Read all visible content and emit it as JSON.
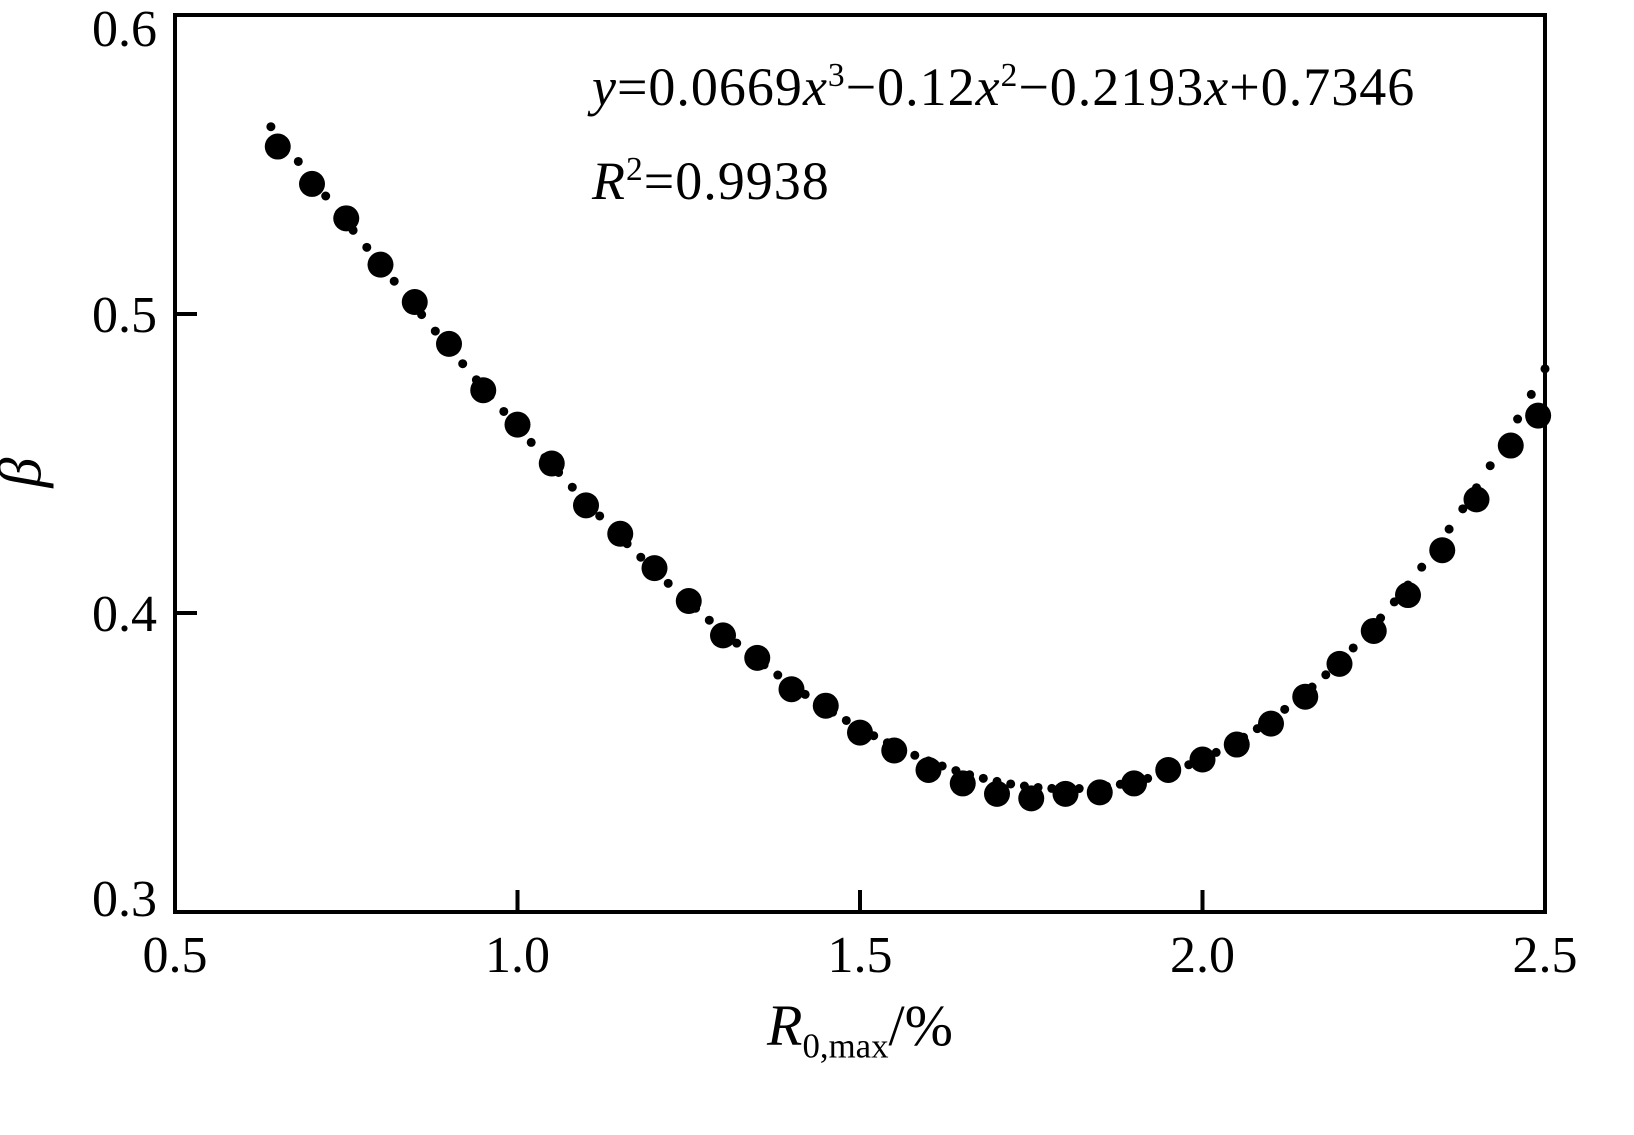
{
  "figure": {
    "background": "#ffffff"
  },
  "annotation": {
    "equation": {
      "lhs": "y",
      "assign": "=0.0669",
      "x1": "x",
      "exp1": "3",
      "term2": "−0.12",
      "x2": "x",
      "exp2": "2",
      "term3": "−0.2193",
      "x3": "x",
      "term4": "+0.7346"
    },
    "r_squared": {
      "base": "R",
      "sup": "2",
      "value": "=0.9938"
    }
  },
  "chart_data": {
    "type": "scatter",
    "title": "",
    "xlabel": {
      "base": "R",
      "sub": "0,max",
      "suffix": "/%"
    },
    "ylabel": "β",
    "xlim": [
      0.5,
      2.5
    ],
    "ylim": [
      0.3,
      0.6
    ],
    "xticks": {
      "values": [
        0.5,
        1.0,
        1.5,
        2.0,
        2.5
      ],
      "labels": [
        "0.5",
        "1.0",
        "1.5",
        "2.0",
        "2.5"
      ]
    },
    "yticks": {
      "values": [
        0.3,
        0.4,
        0.5,
        0.6
      ],
      "labels": [
        "0.3",
        "0.4",
        "0.5",
        "0.6"
      ]
    },
    "grid": false,
    "legend": "none",
    "colors": {
      "marker": "#000000",
      "axis": "#000000"
    },
    "series": [
      {
        "name": "data-points",
        "marker": "circle",
        "radius": 13,
        "points": [
          [
            0.65,
            0.556
          ],
          [
            0.7,
            0.5435
          ],
          [
            0.75,
            0.532
          ],
          [
            0.8,
            0.5165
          ],
          [
            0.85,
            0.504
          ],
          [
            0.9,
            0.49
          ],
          [
            0.95,
            0.4745
          ],
          [
            1.0,
            0.463
          ],
          [
            1.05,
            0.45
          ],
          [
            1.1,
            0.436
          ],
          [
            1.15,
            0.4265
          ],
          [
            1.2,
            0.415
          ],
          [
            1.25,
            0.404
          ],
          [
            1.3,
            0.3925
          ],
          [
            1.35,
            0.385
          ],
          [
            1.4,
            0.3745
          ],
          [
            1.45,
            0.369
          ],
          [
            1.5,
            0.36
          ],
          [
            1.55,
            0.354
          ],
          [
            1.6,
            0.3475
          ],
          [
            1.65,
            0.343
          ],
          [
            1.7,
            0.3395
          ],
          [
            1.75,
            0.338
          ],
          [
            1.8,
            0.3395
          ],
          [
            1.85,
            0.34
          ],
          [
            1.9,
            0.343
          ],
          [
            1.95,
            0.3475
          ],
          [
            2.0,
            0.351
          ],
          [
            2.05,
            0.356
          ],
          [
            2.1,
            0.363
          ],
          [
            2.15,
            0.372
          ],
          [
            2.2,
            0.383
          ],
          [
            2.25,
            0.394
          ],
          [
            2.3,
            0.406
          ],
          [
            2.35,
            0.421
          ],
          [
            2.4,
            0.438
          ],
          [
            2.45,
            0.456
          ],
          [
            2.49,
            0.466
          ]
        ]
      },
      {
        "name": "fit-curve",
        "style": "dotted",
        "radius": 4.5,
        "equation": "y=0.0669x³−0.12x²−0.2193x+0.7346",
        "coefficients": [
          0.0669,
          -0.12,
          -0.2193,
          0.7346
        ],
        "r2": 0.9938,
        "x_range": [
          0.64,
          2.51
        ],
        "step": 0.02
      }
    ]
  }
}
